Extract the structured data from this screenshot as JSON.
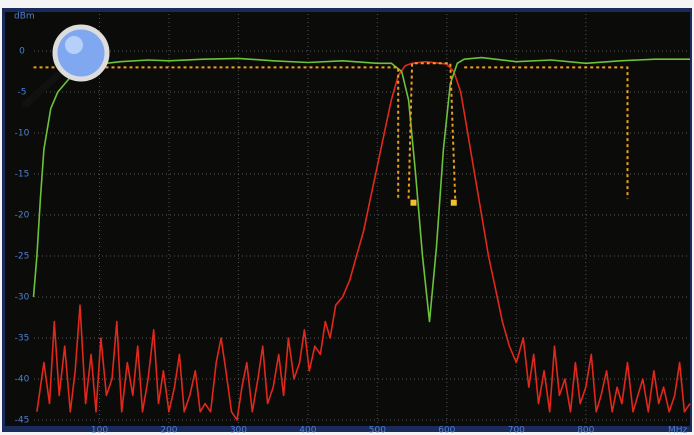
{
  "chart_data": {
    "type": "line",
    "y_label": "dBm",
    "x_label": "MHz",
    "xlim": [
      0,
      950
    ],
    "ylim": [
      -45,
      5
    ],
    "xticks": [
      100,
      200,
      300,
      400,
      500,
      600,
      700,
      800
    ],
    "yticks": [
      0,
      -5,
      -10,
      -15,
      -20,
      -25,
      -30,
      -35,
      -40,
      -45
    ],
    "grid": true,
    "series": [
      {
        "color": "#e0281c",
        "x": [
          10,
          20,
          28,
          35,
          42,
          50,
          58,
          65,
          72,
          80,
          88,
          95,
          102,
          110,
          118,
          125,
          132,
          140,
          148,
          155,
          162,
          170,
          178,
          185,
          192,
          200,
          208,
          215,
          222,
          230,
          238,
          245,
          252,
          260,
          268,
          275,
          282,
          290,
          298,
          305,
          312,
          320,
          328,
          335,
          342,
          350,
          358,
          365,
          372,
          380,
          388,
          395,
          402,
          410,
          418,
          425,
          432,
          440,
          450,
          460,
          470,
          480,
          490,
          500,
          510,
          520,
          530,
          540,
          550,
          570,
          590,
          600,
          610,
          620,
          630,
          640,
          650,
          660,
          670,
          680,
          690,
          700,
          710,
          718,
          725,
          732,
          740,
          748,
          755,
          762,
          770,
          778,
          785,
          792,
          800,
          808,
          815,
          822,
          830,
          838,
          845,
          852,
          860,
          868,
          875,
          882,
          890,
          898,
          905,
          912,
          920,
          928,
          935,
          942,
          950
        ],
        "values": [
          -44,
          -38,
          -43,
          -33,
          -42,
          -36,
          -44,
          -39,
          -31,
          -43,
          -37,
          -44,
          -35,
          -42,
          -40,
          -33,
          -44,
          -38,
          -42,
          -36,
          -44,
          -40,
          -34,
          -43,
          -39,
          -44,
          -41,
          -37,
          -44,
          -42,
          -39,
          -44,
          -43,
          -44,
          -38,
          -35,
          -39,
          -44,
          -45,
          -41,
          -38,
          -44,
          -40,
          -36,
          -43,
          -41,
          -37,
          -42,
          -35,
          -40,
          -38,
          -34,
          -39,
          -36,
          -37,
          -33,
          -35,
          -31,
          -30,
          -28,
          -25,
          -22,
          -18,
          -14,
          -10,
          -6,
          -3,
          -1.8,
          -1.5,
          -1.3,
          -1.5,
          -1.6,
          -2.5,
          -5,
          -10,
          -15,
          -20,
          -25,
          -29,
          -33,
          -36,
          -38,
          -35,
          -41,
          -37,
          -43,
          -39,
          -44,
          -36,
          -42,
          -40,
          -44,
          -38,
          -43,
          -41,
          -37,
          -44,
          -42,
          -39,
          -44,
          -41,
          -43,
          -38,
          -44,
          -42,
          -40,
          -44,
          -39,
          -43,
          -41,
          -44,
          -42,
          -38,
          -44,
          -43
        ]
      },
      {
        "color": "#6cc23a",
        "x": [
          5,
          10,
          15,
          20,
          30,
          40,
          60,
          80,
          100,
          130,
          170,
          200,
          250,
          300,
          350,
          400,
          450,
          500,
          520,
          535,
          545,
          555,
          565,
          575,
          585,
          595,
          605,
          615,
          625,
          650,
          700,
          750,
          800,
          850,
          900,
          950
        ],
        "values": [
          -30,
          -25,
          -18,
          -12,
          -7,
          -5,
          -3,
          -2,
          -1.6,
          -1.3,
          -1.1,
          -1.2,
          -1,
          -0.9,
          -1.2,
          -1.4,
          -1.2,
          -1.5,
          -1.5,
          -2.5,
          -6,
          -15,
          -25,
          -33,
          -24,
          -12,
          -4,
          -1.5,
          -1,
          -0.8,
          -1.3,
          -1.1,
          -1.5,
          -1.2,
          -1,
          -1
        ]
      },
      {
        "color": "#e8a020",
        "dashed": true,
        "x": [
          5,
          530,
          530,
          530,
          545,
          550,
          605,
          612,
          612,
          625,
          860,
          860
        ],
        "values": [
          -2,
          -2,
          -18,
          null,
          -18,
          -1.5,
          -1.5,
          -18,
          null,
          -2,
          -2,
          -18
        ]
      }
    ],
    "markers": {
      "color": "#f0c030",
      "x": [
        552,
        610
      ],
      "values": [
        -18.5,
        -18.5
      ]
    }
  }
}
